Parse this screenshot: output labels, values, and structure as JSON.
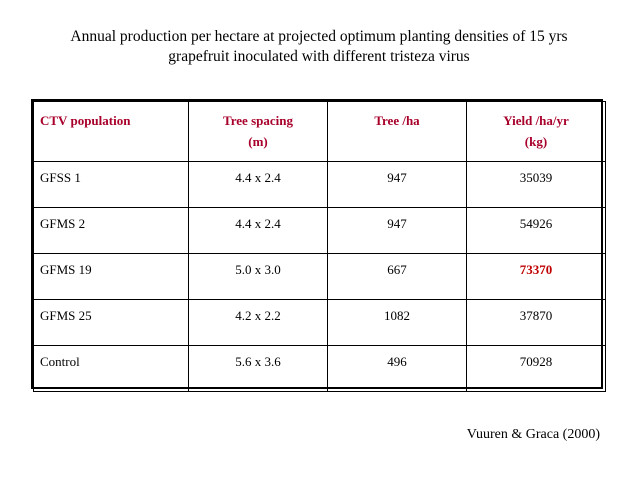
{
  "title": {
    "line1": "Annual production per hectare at projected optimum planting densities of 15 yrs",
    "line2": "grapefruit inoculated with different tristeza virus"
  },
  "table": {
    "headers": [
      {
        "line1": "CTV population",
        "line2": ""
      },
      {
        "line1": "Tree spacing",
        "line2": "(m)"
      },
      {
        "line1": "Tree /ha",
        "line2": ""
      },
      {
        "line1": "Yield /ha/yr",
        "line2": "(kg)"
      }
    ],
    "rows": [
      [
        "GFSS 1",
        "4.4 x 2.4",
        "947",
        "35039"
      ],
      [
        "GFMS 2",
        "4.4 x 2.4",
        "947",
        "54926"
      ],
      [
        "GFMS 19",
        "5.0 x 3.0",
        "667",
        "73370"
      ],
      [
        "GFMS 25",
        "4.2 x 2.2",
        "1082",
        "37870"
      ],
      [
        "Control",
        "5.6 x 3.6",
        "496",
        "70928"
      ]
    ],
    "highlight_cell": {
      "row": 2,
      "col": 3
    }
  },
  "citation": "Vuuren & Graca (2000)",
  "colors": {
    "header_text": "#a8002a",
    "highlight_text": "#c00000"
  }
}
